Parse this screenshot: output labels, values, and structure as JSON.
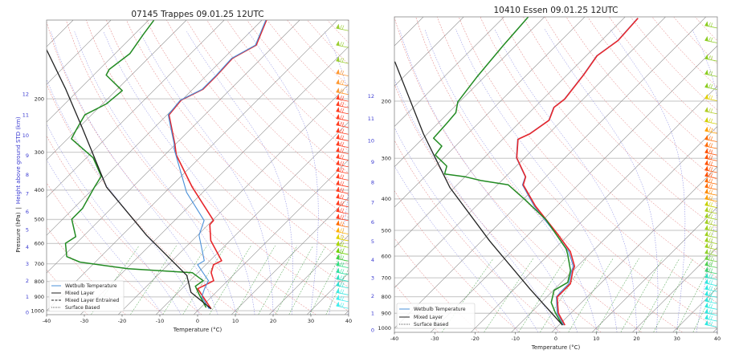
{
  "chart_data": [
    {
      "type": "line",
      "title": "07145 Trappes 09.01.25 12UTC",
      "xlabel": "Temperature (°C)",
      "ylabel": "Pressure (hPa)",
      "ylabel_separator": "|",
      "ylabel2": "Height above ground STD (km)",
      "xlim": [
        -40,
        40
      ],
      "ylim": [
        1030,
        110
      ],
      "y_scale": "log",
      "skewed_isotherms": true,
      "grid": true,
      "legend": "bottom-left",
      "xticks": [
        -40,
        -30,
        -20,
        -10,
        0,
        10,
        20,
        30,
        40
      ],
      "pressure_ticks": [
        1000,
        900,
        800,
        700,
        600,
        500,
        400,
        300,
        200
      ],
      "height_ticks_km": [
        0,
        1,
        2,
        3,
        4,
        5,
        6,
        7,
        8,
        9,
        10,
        11,
        12
      ],
      "legend_entries": [
        {
          "label": "Wetbulb Temperature",
          "color": "#4a90d9",
          "style": "solid"
        },
        {
          "label": "Mixed Layer",
          "color": "#222222",
          "style": "solid"
        },
        {
          "label": "Mixed Layer Entrained",
          "color": "#222222",
          "style": "dashed"
        },
        {
          "label": "Surface Based",
          "color": "#222222",
          "style": "dotted"
        }
      ],
      "series": [
        {
          "color": "#e8262b",
          "width": 1.6,
          "p": [
            986,
            900,
            846,
            796,
            749,
            705,
            684,
            587,
            520,
            504,
            391,
            306,
            282,
            226,
            202,
            186,
            167,
            147,
            133,
            110
          ],
          "t": [
            3.1,
            -2.2,
            -5.8,
            -3.7,
            -6.5,
            -8.0,
            -6.9,
            -15.1,
            -19.6,
            -19.7,
            -34.2,
            -47.0,
            -50.2,
            -59.5,
            -60.2,
            -57.3,
            -57.3,
            -57.7,
            -54.9,
            -58.8
          ]
        },
        {
          "color": "#228b22",
          "width": 1.5,
          "p": [
            976,
            882,
            830,
            796,
            749,
            727,
            691,
            663,
            599,
            570,
            499,
            460,
            391,
            360,
            313,
            271,
            250,
            226,
            208,
            188,
            167,
            160,
            142,
            123,
            110
          ],
          "t": [
            1.4,
            -4.0,
            -7.1,
            -6.5,
            -11.5,
            -29.6,
            -44.1,
            -49.0,
            -52.9,
            -51.9,
            -57.6,
            -57.6,
            -60.1,
            -61.2,
            -68.2,
            -79.0,
            -80.3,
            -81.8,
            -79.0,
            -78.3,
            -86.7,
            -87.4,
            -86.1,
            -87.6,
            -88.6
          ]
        },
        {
          "name": "Wetbulb Temperature",
          "color": "#4a90d9",
          "width": 1.1,
          "p": [
            986,
            900,
            846,
            796,
            705,
            684,
            564,
            504,
            407,
            294,
            282,
            226,
            202,
            186,
            167,
            147,
            133,
            110
          ],
          "t": [
            2.6,
            -2.6,
            -4.0,
            -5.1,
            -12.2,
            -11.5,
            -19.6,
            -22.2,
            -34.3,
            -48.9,
            -50.4,
            -59.7,
            -60.4,
            -57.5,
            -57.5,
            -57.9,
            -55.1,
            -59.0
          ]
        },
        {
          "name": "Mixed Layer",
          "color": "#222222",
          "width": 1.3,
          "p": [
            986,
            870,
            765,
            564,
            391,
            250,
            185,
            137
          ],
          "t": [
            3.1,
            -6.6,
            -12.2,
            -33.5,
            -56.9,
            -78.9,
            -93.9,
            -109.5
          ]
        }
      ],
      "wind_barbs": {
        "pressures": [
          117,
          133,
          150,
          165,
          178,
          190,
          200,
          210,
          220,
          232,
          244,
          257,
          270,
          284,
          298,
          313,
          329,
          346,
          364,
          383,
          403,
          424,
          446,
          470,
          495,
          520,
          548,
          577,
          607,
          640,
          673,
          708,
          746,
          785,
          826,
          870,
          916,
          964
        ],
        "colors": [
          "#9acd32",
          "#9acd32",
          "#9acd32",
          "#ff9933",
          "#ff9933",
          "#ff9933",
          "#ff3b1f",
          "#ff3b1f",
          "#ff3b1f",
          "#ff3b1f",
          "#ff3b1f",
          "#ff3b1f",
          "#ff3b1f",
          "#ff3b1f",
          "#ff3b1f",
          "#ff3b1f",
          "#ff3b1f",
          "#ff3b1f",
          "#ff3b1f",
          "#ff3b1f",
          "#ff3b1f",
          "#ff3b1f",
          "#ff3b1f",
          "#ff3b1f",
          "#ff3b1f",
          "#ff6a00",
          "#ffb000",
          "#e0d000",
          "#a8d800",
          "#70d000",
          "#40d040",
          "#30e080",
          "#30e0a0",
          "#30e0c0",
          "#30e0d0",
          "#40e8e0",
          "#40f0f0",
          "#40f0f0"
        ]
      }
    },
    {
      "type": "line",
      "title": "10410 Essen 09.01.25 12UTC",
      "xlabel": "Temperature (°C)",
      "xlim": [
        -40,
        40
      ],
      "ylim": [
        1030,
        110
      ],
      "y_scale": "log",
      "skewed_isotherms": true,
      "grid": true,
      "legend": "bottom-left",
      "xticks": [
        -40,
        -30,
        -20,
        -10,
        0,
        10,
        20,
        30,
        40
      ],
      "pressure_ticks": [
        1000,
        900,
        800,
        700,
        600,
        500,
        400,
        300,
        200
      ],
      "height_ticks_km": [
        0,
        1,
        2,
        3,
        4,
        5,
        6,
        7,
        8,
        9,
        10,
        11,
        12
      ],
      "legend_entries": [
        {
          "label": "Wetbulb Temperature",
          "color": "#4a90d9",
          "style": "solid"
        },
        {
          "label": "Mixed Layer",
          "color": "#222222",
          "style": "solid"
        },
        {
          "label": "Surface Based",
          "color": "#222222",
          "style": "dotted"
        }
      ],
      "series": [
        {
          "name": "Wetbulb Temperature",
          "color": "#4a90d9",
          "width": 1.1,
          "p": [
            979,
            899,
            802,
            773,
            730,
            664,
            645,
            581,
            509,
            421,
            362,
            342,
            299,
            262,
            252,
            229,
            209,
            197,
            166,
            145,
            130,
            111
          ],
          "t": [
            1.2,
            -3.4,
            -7.6,
            -7.8,
            -7.8,
            -10.4,
            -11.0,
            -15.8,
            -23.8,
            -35.6,
            -43.8,
            -45.1,
            -52.0,
            -56.3,
            -54.7,
            -53.3,
            -55.3,
            -54.7,
            -56.0,
            -57.4,
            -56.0,
            -56.6
          ]
        },
        {
          "color": "#e8262b",
          "width": 1.6,
          "p": [
            979,
            899,
            802,
            773,
            730,
            664,
            645,
            581,
            509,
            421,
            362,
            342,
            299,
            262,
            252,
            229,
            209,
            197,
            166,
            145,
            130,
            111
          ],
          "t": [
            1.5,
            -3.1,
            -7.4,
            -7.4,
            -7.4,
            -10.1,
            -10.7,
            -15.4,
            -23.4,
            -35.3,
            -43.6,
            -45.0,
            -51.9,
            -56.2,
            -54.6,
            -53.2,
            -55.2,
            -54.6,
            -55.9,
            -57.3,
            -55.9,
            -56.5
          ]
        },
        {
          "color": "#228b22",
          "width": 1.5,
          "p": [
            979,
            899,
            834,
            765,
            723,
            664,
            592,
            570,
            463,
            401,
            362,
            351,
            342,
            335,
            317,
            293,
            275,
            260,
            234,
            217,
            201,
            169,
            135,
            110
          ],
          "t": [
            0.9,
            -3.8,
            -7.5,
            -9.8,
            -8.4,
            -10.7,
            -15.4,
            -17.1,
            -29.4,
            -39.7,
            -47.3,
            -55.2,
            -59.9,
            -65.8,
            -67.2,
            -72.8,
            -73.4,
            -77.4,
            -77.8,
            -78.2,
            -80.4,
            -81.8,
            -83.1,
            -84.0
          ]
        },
        {
          "name": "Mixed Layer",
          "color": "#222222",
          "width": 1.3,
          "p": [
            979,
            758,
            539,
            369,
            252,
            151
          ],
          "t": [
            0.9,
            -16.1,
            -38.0,
            -61.1,
            -81.0,
            -106.0
          ]
        }
      ],
      "wind_barbs": {
        "pressures": [
          117,
          130,
          148,
          165,
          181,
          196,
          215,
          231,
          247,
          262,
          275,
          288,
          300,
          313,
          326,
          340,
          354,
          368,
          383,
          400,
          418,
          436,
          455,
          475,
          496,
          518,
          540,
          563,
          588,
          613,
          640,
          668,
          697,
          727,
          758,
          790,
          825,
          860,
          897,
          935,
          975
        ],
        "colors": [
          "#8ccc20",
          "#8ccc20",
          "#8ccc20",
          "#8ccc20",
          "#8ccc20",
          "#e0d000",
          "#b0cc20",
          "#d0d000",
          "#ffa000",
          "#ff6a00",
          "#ff6a00",
          "#ff5000",
          "#ff5000",
          "#ff5000",
          "#ff5000",
          "#ff5000",
          "#ff6a00",
          "#ff6a00",
          "#ff8a00",
          "#ffa000",
          "#c8d000",
          "#b0d020",
          "#a0d020",
          "#a0d020",
          "#a0d020",
          "#a0d020",
          "#a0d020",
          "#a0d020",
          "#90d030",
          "#70d040",
          "#50d050",
          "#40d070",
          "#30e0c0",
          "#30e8e0",
          "#30e8e0",
          "#30e8e0",
          "#30e8e0",
          "#30e8e0",
          "#30e8e0",
          "#30e8e0",
          "#30e8e0"
        ]
      }
    }
  ]
}
